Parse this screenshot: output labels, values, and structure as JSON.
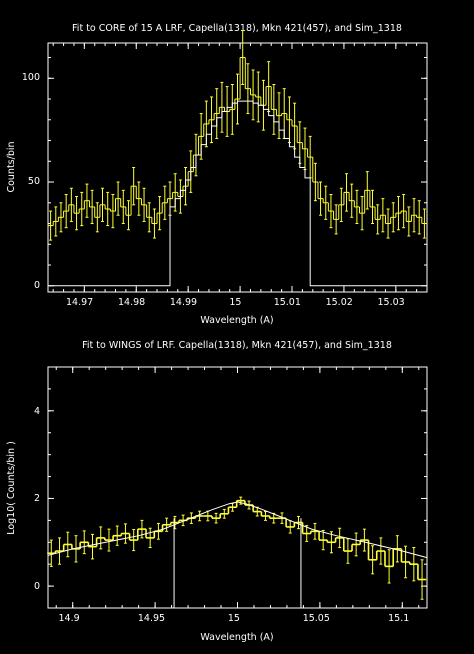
{
  "chart_data": [
    {
      "type": "line",
      "title": "Fit to CORE of 15 A LRF,  Capella(1318), Mkn 421(457), and Sim_1318",
      "xlabel": "Wavelength (A)",
      "ylabel": "Counts/bin",
      "xlim": [
        14.963,
        15.036
      ],
      "ylim": [
        -3,
        117
      ],
      "x_tick_labels": [
        "14.97",
        "14.98",
        "14.99",
        "15",
        "15.01",
        "15.02",
        "15.03"
      ],
      "y_tick_labels": [
        "0",
        "50",
        "100"
      ],
      "grid": false,
      "colors": {
        "data": "#ffff33",
        "model": "#ffffff"
      },
      "series": [
        {
          "style": "histogram-with-error-bars",
          "x": [
            14.9635,
            14.9645,
            14.9655,
            14.9665,
            14.9675,
            14.9685,
            14.9695,
            14.9705,
            14.9715,
            14.9725,
            14.9735,
            14.9745,
            14.9755,
            14.9765,
            14.9775,
            14.9785,
            14.9795,
            14.9805,
            14.9815,
            14.9825,
            14.9835,
            14.9845,
            14.9855,
            14.9865,
            14.9875,
            14.9885,
            14.9895,
            14.9905,
            14.9915,
            14.9925,
            14.9935,
            14.9945,
            14.9955,
            14.9965,
            14.9975,
            14.9985,
            14.9995,
            15.0005,
            15.0015,
            15.0025,
            15.0035,
            15.0045,
            15.0055,
            15.0065,
            15.0075,
            15.0085,
            15.0095,
            15.0105,
            15.0115,
            15.0125,
            15.0135,
            15.0145,
            15.0155,
            15.0165,
            15.0175,
            15.0185,
            15.0195,
            15.0205,
            15.0215,
            15.0225,
            15.0235,
            15.0245,
            15.0255,
            15.0265,
            15.0275,
            15.0285,
            15.0295,
            15.0305,
            15.0315,
            15.0325,
            15.0335,
            15.0345,
            15.0355
          ],
          "y": [
            29,
            31,
            33,
            36,
            39,
            35,
            37,
            41,
            38,
            33,
            39,
            37,
            36,
            42,
            38,
            34,
            48,
            42,
            39,
            33,
            30,
            35,
            40,
            42,
            45,
            43,
            48,
            55,
            63,
            72,
            78,
            80,
            83,
            86,
            84,
            85,
            90,
            110,
            95,
            92,
            91,
            87,
            96,
            85,
            82,
            83,
            80,
            77,
            69,
            66,
            62,
            50,
            42,
            40,
            36,
            32,
            39,
            45,
            41,
            38,
            35,
            46,
            38,
            32,
            34,
            30,
            33,
            35,
            36,
            31,
            34,
            33,
            30
          ],
          "yerr": [
            7,
            7,
            7,
            8,
            8,
            8,
            8,
            8,
            8,
            7,
            8,
            8,
            8,
            8,
            8,
            7,
            9,
            8,
            8,
            7,
            7,
            8,
            8,
            8,
            9,
            8,
            9,
            10,
            10,
            11,
            11,
            11,
            12,
            12,
            12,
            12,
            12,
            13,
            12,
            12,
            12,
            12,
            12,
            12,
            11,
            12,
            11,
            11,
            10,
            10,
            10,
            9,
            8,
            8,
            8,
            7,
            8,
            9,
            8,
            8,
            8,
            9,
            8,
            7,
            8,
            7,
            7,
            8,
            8,
            7,
            8,
            8,
            7
          ]
        },
        {
          "style": "model-step",
          "x": [
            14.9635,
            14.9865,
            14.9865,
            14.9875,
            14.9885,
            14.9895,
            14.9905,
            14.9915,
            14.9925,
            14.9935,
            14.9945,
            14.9955,
            14.9965,
            14.9975,
            14.9985,
            14.9995,
            15.0005,
            15.0015,
            15.0025,
            15.0035,
            15.0045,
            15.0055,
            15.0065,
            15.0075,
            15.0085,
            15.0095,
            15.0105,
            15.0115,
            15.0125,
            15.0135,
            15.0135,
            15.0355
          ],
          "y": [
            0,
            0,
            38,
            42,
            46,
            51,
            57,
            63,
            68,
            73,
            77,
            81,
            84,
            86,
            88,
            89,
            89,
            89,
            88,
            87,
            85,
            82,
            79,
            75,
            71,
            67,
            62,
            57,
            52,
            47,
            0,
            0
          ]
        }
      ]
    },
    {
      "type": "line",
      "title": "Fit to WINGS of LRF.  Capella(1318), Mkn 421(457), and Sim_1318",
      "xlabel": "Wavelength (A)",
      "ylabel": "Log10( Counts/bin )",
      "xlim": [
        14.885,
        15.115
      ],
      "ylim": [
        -0.5,
        5
      ],
      "x_tick_labels": [
        "14.9",
        "14.95",
        "15",
        "15.05",
        "15.1"
      ],
      "y_tick_labels": [
        "0",
        "2",
        "4"
      ],
      "grid": false,
      "colors": {
        "data": "#ffff33",
        "model": "#ffffff"
      },
      "series": [
        {
          "style": "dense-histogram-with-error-bars",
          "x": [
            14.887,
            14.892,
            14.897,
            14.902,
            14.907,
            14.912,
            14.917,
            14.922,
            14.927,
            14.932,
            14.937,
            14.942,
            14.947,
            14.952,
            14.957,
            14.962,
            14.967,
            14.972,
            14.977,
            14.982,
            14.987,
            14.992,
            14.997,
            15.002,
            15.007,
            15.012,
            15.017,
            15.022,
            15.027,
            15.032,
            15.037,
            15.042,
            15.047,
            15.052,
            15.057,
            15.062,
            15.067,
            15.072,
            15.077,
            15.082,
            15.087,
            15.092,
            15.097,
            15.102,
            15.107,
            15.112
          ],
          "y": [
            0.75,
            0.8,
            0.95,
            0.85,
            1.0,
            0.9,
            1.1,
            1.05,
            1.15,
            1.2,
            1.05,
            1.3,
            1.1,
            1.25,
            1.4,
            1.45,
            1.5,
            1.55,
            1.6,
            1.6,
            1.55,
            1.65,
            1.8,
            1.95,
            1.85,
            1.7,
            1.6,
            1.55,
            1.55,
            1.35,
            1.45,
            1.2,
            1.25,
            1.05,
            1.0,
            1.1,
            0.8,
            0.95,
            1.05,
            0.6,
            0.8,
            0.45,
            0.85,
            0.55,
            0.5,
            0.15
          ],
          "yerr": [
            0.3,
            0.3,
            0.28,
            0.3,
            0.26,
            0.28,
            0.25,
            0.25,
            0.22,
            0.22,
            0.24,
            0.2,
            0.22,
            0.18,
            0.15,
            0.14,
            0.12,
            0.12,
            0.11,
            0.11,
            0.11,
            0.1,
            0.09,
            0.08,
            0.09,
            0.1,
            0.1,
            0.11,
            0.12,
            0.14,
            0.14,
            0.18,
            0.18,
            0.22,
            0.24,
            0.22,
            0.28,
            0.26,
            0.25,
            0.32,
            0.3,
            0.38,
            0.3,
            0.36,
            0.38,
            0.45
          ]
        },
        {
          "style": "model-line",
          "x": [
            14.885,
            14.9,
            14.92,
            14.94,
            14.955,
            14.965,
            14.975,
            14.985,
            14.995,
            15.0,
            15.005,
            15.015,
            15.025,
            15.035,
            15.045,
            15.06,
            15.08,
            15.1,
            15.115
          ],
          "y": [
            0.7,
            0.85,
            1.0,
            1.15,
            1.3,
            1.45,
            1.6,
            1.75,
            1.88,
            1.92,
            1.88,
            1.75,
            1.6,
            1.45,
            1.3,
            1.15,
            0.98,
            0.8,
            0.65
          ]
        },
        {
          "style": "window-edge-lines",
          "x": [
            14.9615,
            15.0385
          ],
          "y": [
            -0.5,
            1.55
          ]
        }
      ]
    }
  ]
}
